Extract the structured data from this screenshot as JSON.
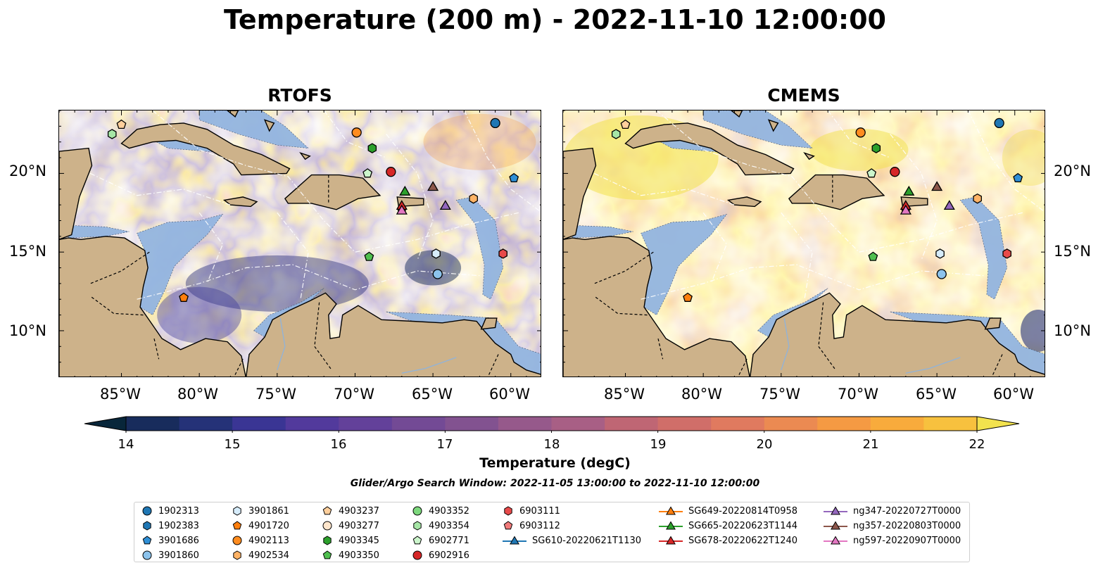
{
  "title": "Temperature (200 m) - 2022-11-10 12:00:00",
  "panels": [
    {
      "title": "RTOFS",
      "style": "cool"
    },
    {
      "title": "CMEMS",
      "style": "warm"
    }
  ],
  "lat_ticks": [
    "20°N",
    "15°N",
    "10°N"
  ],
  "lon_ticks": [
    "85°W",
    "80°W",
    "75°W",
    "70°W",
    "65°W",
    "60°W"
  ],
  "colorbar": {
    "label": "Temperature (degC)",
    "min": 14,
    "max": 22,
    "step": 0.5,
    "tick_labels": [
      "14",
      "15",
      "16",
      "17",
      "18",
      "19",
      "20",
      "21",
      "22"
    ],
    "colors": [
      "#08263a",
      "#182c5c",
      "#253278",
      "#3a3594",
      "#523a9c",
      "#63419a",
      "#734a95",
      "#825290",
      "#96598b",
      "#a85f85",
      "#bf6674",
      "#d06e69",
      "#e07a5f",
      "#eb8a52",
      "#f59a43",
      "#f8ab3c",
      "#f7c13e",
      "#f2e24e"
    ]
  },
  "search_window": "Glider/Argo Search Window: 2022-11-05 13:00:00 to 2022-11-10 12:00:00",
  "extent": {
    "lon_min": -89,
    "lon_max": -58,
    "lat_min": 7,
    "lat_max": 24
  },
  "colors": {
    "land": "#cdb28a",
    "shelf": "#93b5e0",
    "eez": "#ffffff"
  },
  "platforms": [
    {
      "id": "1902313",
      "marker": "circle",
      "color": "#1f77b4",
      "lon": -61.0,
      "lat": 23.2
    },
    {
      "id": "1902383",
      "marker": "hexagon",
      "color": "#1f77b4",
      "lon": null,
      "lat": null
    },
    {
      "id": "3901686",
      "marker": "pentagon",
      "color": "#2f8fd6",
      "lon": -59.8,
      "lat": 19.7
    },
    {
      "id": "3901860",
      "marker": "circle",
      "color": "#8cc3ec",
      "lon": -64.7,
      "lat": 13.6
    },
    {
      "id": "3901861",
      "marker": "hexagon",
      "color": "#d6ecfb",
      "lon": -64.8,
      "lat": 14.9
    },
    {
      "id": "4901720",
      "marker": "pentagon",
      "color": "#ff7f0e",
      "lon": -81.0,
      "lat": 12.1
    },
    {
      "id": "4902113",
      "marker": "circle",
      "color": "#ff8c1f",
      "lon": -69.9,
      "lat": 22.6
    },
    {
      "id": "4902534",
      "marker": "hexagon",
      "color": "#ffb366",
      "lon": -62.4,
      "lat": 18.4
    },
    {
      "id": "4903237",
      "marker": "pentagon",
      "color": "#ffcf9c",
      "lon": -85.0,
      "lat": 23.1
    },
    {
      "id": "4903277",
      "marker": "circle",
      "color": "#ffe6cc",
      "lon": null,
      "lat": null
    },
    {
      "id": "4903345",
      "marker": "hexagon",
      "color": "#2ca02c",
      "lon": -68.9,
      "lat": 21.6
    },
    {
      "id": "4903350",
      "marker": "pentagon",
      "color": "#4fbf4f",
      "lon": -69.1,
      "lat": 14.7
    },
    {
      "id": "4903352",
      "marker": "circle",
      "color": "#7dd87d",
      "lon": null,
      "lat": null
    },
    {
      "id": "4903354",
      "marker": "hexagon",
      "color": "#a6e6a6",
      "lon": -85.6,
      "lat": 22.5
    },
    {
      "id": "6902771",
      "marker": "pentagon",
      "color": "#ccf5cc",
      "lon": -69.2,
      "lat": 20.0
    },
    {
      "id": "6902916",
      "marker": "circle",
      "color": "#d62728",
      "lon": -67.7,
      "lat": 20.1
    },
    {
      "id": "6903111",
      "marker": "hexagon",
      "color": "#e84a4a",
      "lon": -60.5,
      "lat": 14.9
    },
    {
      "id": "6903112",
      "marker": "pentagon",
      "color": "#f07a7a",
      "lon": -67.0,
      "lat": 17.7
    },
    {
      "id": "SG610-20220621T1130",
      "marker": "triangle",
      "color": "#1f77b4",
      "line": true,
      "lon": null,
      "lat": null
    },
    {
      "id": "SG649-20220814T0958",
      "marker": "triangle",
      "color": "#ff7f0e",
      "line": true,
      "lon": null,
      "lat": null
    },
    {
      "id": "SG665-20220623T1144",
      "marker": "triangle",
      "color": "#2ca02c",
      "line": true,
      "lon": -66.8,
      "lat": 18.8
    },
    {
      "id": "SG678-20220622T1240",
      "marker": "triangle",
      "color": "#d62728",
      "line": true,
      "lon": -67.0,
      "lat": 17.9
    },
    {
      "id": "ng347-20220727T0000",
      "marker": "triangle",
      "color": "#9467bd",
      "line": true,
      "lon": -64.2,
      "lat": 17.9
    },
    {
      "id": "ng357-20220803T0000",
      "marker": "triangle",
      "color": "#8c564b",
      "line": true,
      "lon": -65.0,
      "lat": 19.1
    },
    {
      "id": "ng597-20220907T0000",
      "marker": "triangle",
      "color": "#e377c2",
      "line": true,
      "lon": -67.0,
      "lat": 17.6
    }
  ]
}
